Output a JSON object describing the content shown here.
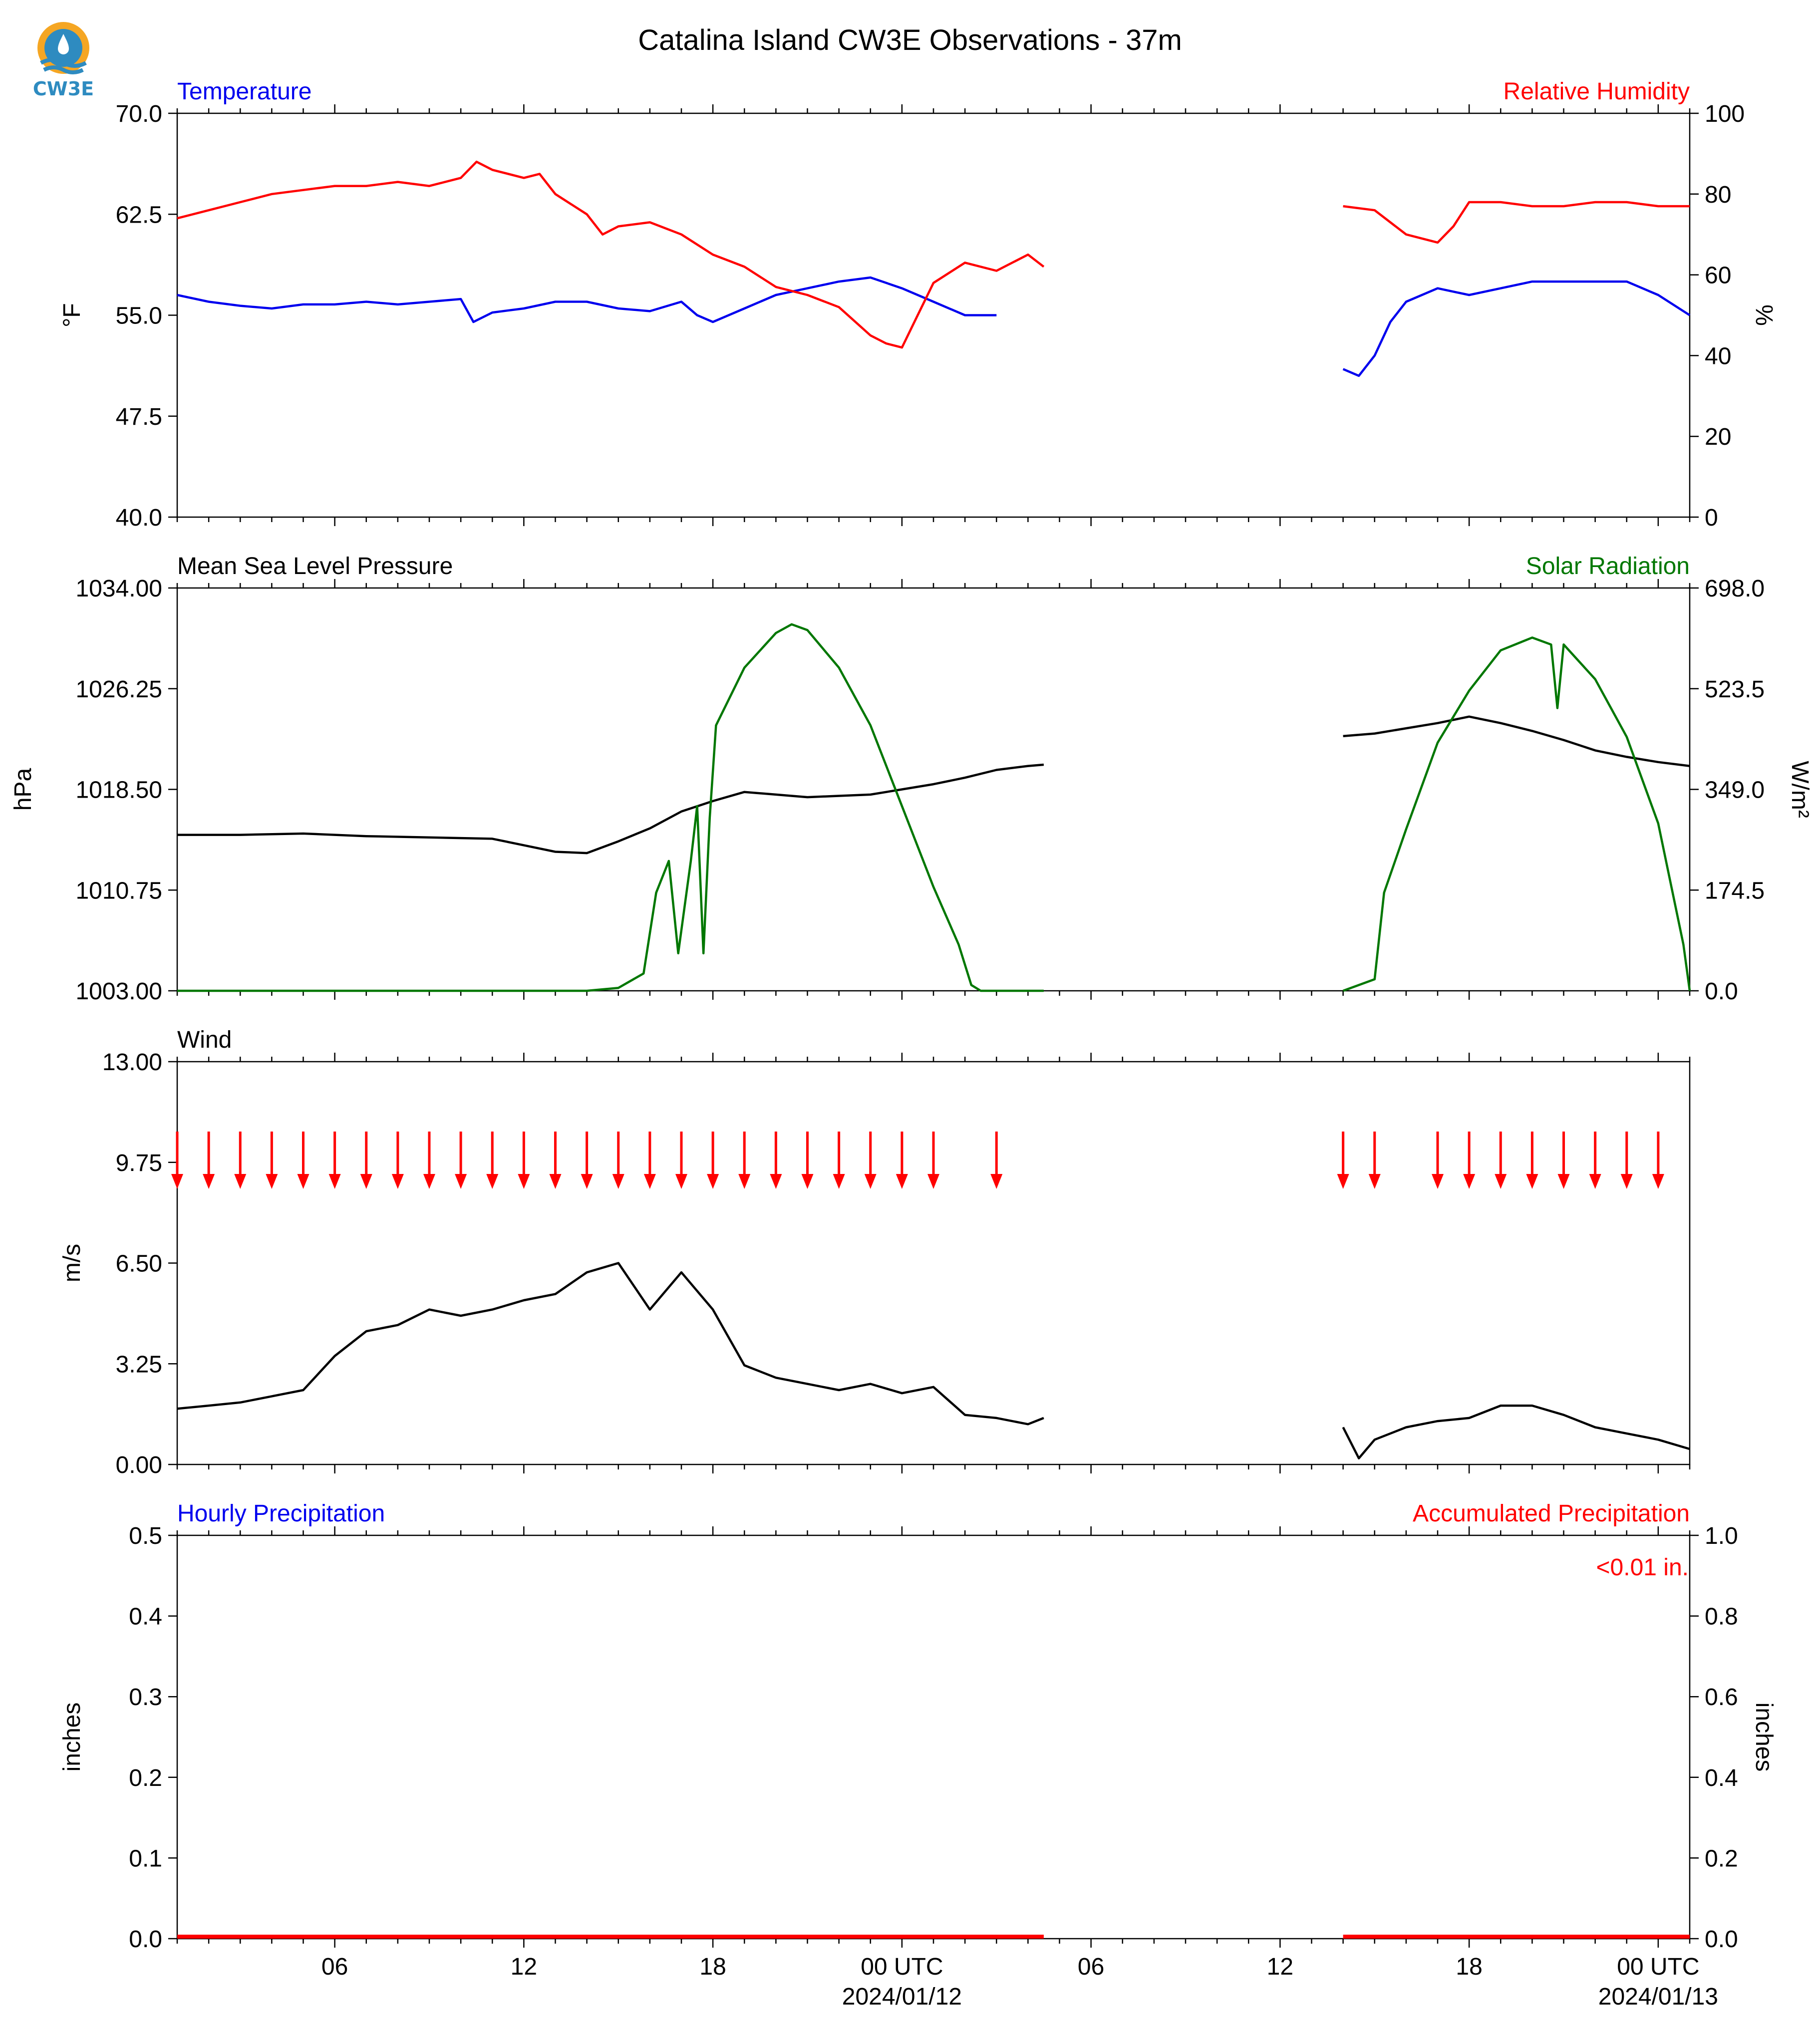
{
  "title": "Catalina Island CW3E Observations - 37m",
  "logo": {
    "text": "CW3E",
    "colors": {
      "outer": "#f5a623",
      "inner": "#2e8bc0",
      "text": "#2e8bc0"
    }
  },
  "colors": {
    "temperature": "#0000ee",
    "humidity": "#ff0000",
    "pressure": "#000000",
    "solar": "#007700",
    "wind_barb": "#ff0000",
    "precip_hourly": "#0000ee",
    "precip_accum": "#ff0000"
  },
  "x_axis": {
    "tick_labels": [
      "06",
      "12",
      "18",
      "00 UTC",
      "06",
      "12",
      "18",
      "00 UTC"
    ],
    "date_labels": [
      "2024/01/12",
      "2024/01/13"
    ]
  },
  "chart_data": [
    {
      "type": "line",
      "panel": "temperature-humidity",
      "title_left": "Temperature",
      "title_right": "Relative Humidity",
      "ylabel_left": "°F",
      "ylabel_right": "%",
      "ylim_left": [
        40.0,
        70.0
      ],
      "ylim_right": [
        0,
        100
      ],
      "yticks_left": [
        "40.0",
        "47.5",
        "55.0",
        "62.5",
        "70.0"
      ],
      "yticks_right": [
        "0",
        "20",
        "40",
        "60",
        "80",
        "100"
      ],
      "xlim_hours": [
        1,
        49
      ],
      "series": [
        {
          "name": "Temperature",
          "axis": "left",
          "color": "#0000ee",
          "segments": [
            [
              [
                1,
                56.5
              ],
              [
                2,
                56.0
              ],
              [
                3,
                55.7
              ],
              [
                4,
                55.5
              ],
              [
                5,
                55.8
              ],
              [
                6,
                55.8
              ],
              [
                7,
                56.0
              ],
              [
                8,
                55.8
              ],
              [
                9,
                56.0
              ],
              [
                10,
                56.2
              ],
              [
                10.4,
                54.5
              ],
              [
                11,
                55.2
              ],
              [
                12,
                55.5
              ],
              [
                13,
                56.0
              ],
              [
                14,
                56.0
              ],
              [
                15,
                55.5
              ],
              [
                16,
                55.3
              ],
              [
                17,
                56.0
              ],
              [
                17.5,
                55.0
              ],
              [
                18,
                54.5
              ],
              [
                19,
                55.5
              ],
              [
                20,
                56.5
              ],
              [
                21,
                57.0
              ],
              [
                22,
                57.5
              ],
              [
                23,
                57.8
              ],
              [
                24,
                57.0
              ],
              [
                25,
                56.0
              ],
              [
                26,
                55.0
              ],
              [
                27,
                55.0
              ]
            ],
            [
              [
                38,
                51.0
              ],
              [
                38.5,
                50.5
              ],
              [
                39,
                52.0
              ],
              [
                39.5,
                54.5
              ],
              [
                40,
                56.0
              ],
              [
                41,
                57.0
              ],
              [
                42,
                56.5
              ],
              [
                43,
                57.0
              ],
              [
                44,
                57.5
              ],
              [
                45,
                57.5
              ],
              [
                46,
                57.5
              ],
              [
                47,
                57.5
              ],
              [
                48,
                56.5
              ],
              [
                49,
                55.0
              ]
            ]
          ]
        },
        {
          "name": "Relative Humidity",
          "axis": "right",
          "color": "#ff0000",
          "segments": [
            [
              [
                1,
                74
              ],
              [
                2,
                76
              ],
              [
                3,
                78
              ],
              [
                4,
                80
              ],
              [
                5,
                81
              ],
              [
                6,
                82
              ],
              [
                7,
                82
              ],
              [
                8,
                83
              ],
              [
                9,
                82
              ],
              [
                10,
                84
              ],
              [
                10.5,
                88
              ],
              [
                11,
                86
              ],
              [
                12,
                84
              ],
              [
                12.5,
                85
              ],
              [
                13,
                80
              ],
              [
                14,
                75
              ],
              [
                14.5,
                70
              ],
              [
                15,
                72
              ],
              [
                16,
                73
              ],
              [
                17,
                70
              ],
              [
                18,
                65
              ],
              [
                19,
                62
              ],
              [
                20,
                57
              ],
              [
                21,
                55
              ],
              [
                22,
                52
              ],
              [
                23,
                45
              ],
              [
                23.5,
                43
              ],
              [
                24,
                42
              ],
              [
                24.5,
                50
              ],
              [
                25,
                58
              ],
              [
                26,
                63
              ],
              [
                27,
                61
              ],
              [
                28,
                65
              ],
              [
                28.5,
                62
              ]
            ],
            [
              [
                38,
                77
              ],
              [
                39,
                76
              ],
              [
                40,
                70
              ],
              [
                41,
                68
              ],
              [
                41.5,
                72
              ],
              [
                42,
                78
              ],
              [
                43,
                78
              ],
              [
                44,
                77
              ],
              [
                45,
                77
              ],
              [
                46,
                78
              ],
              [
                47,
                78
              ],
              [
                48,
                77
              ],
              [
                49,
                77
              ]
            ]
          ]
        }
      ]
    },
    {
      "type": "line",
      "panel": "pressure-solar",
      "title_left": "Mean Sea Level Pressure",
      "title_right": "Solar Radiation",
      "ylabel_left": "hPa",
      "ylabel_right": "W/m²",
      "ylim_left": [
        1003.0,
        1034.0
      ],
      "ylim_right": [
        0.0,
        698.0
      ],
      "yticks_left": [
        "1003.00",
        "1010.75",
        "1018.50",
        "1026.25",
        "1034.00"
      ],
      "yticks_right": [
        "0.0",
        "174.5",
        "349.0",
        "523.5",
        "698.0"
      ],
      "xlim_hours": [
        1,
        49
      ],
      "series": [
        {
          "name": "Mean Sea Level Pressure",
          "axis": "left",
          "color": "#000000",
          "segments": [
            [
              [
                1,
                1015.0
              ],
              [
                3,
                1015.0
              ],
              [
                5,
                1015.1
              ],
              [
                7,
                1014.9
              ],
              [
                9,
                1014.8
              ],
              [
                11,
                1014.7
              ],
              [
                12,
                1014.2
              ],
              [
                13,
                1013.7
              ],
              [
                14,
                1013.6
              ],
              [
                15,
                1014.5
              ],
              [
                16,
                1015.5
              ],
              [
                17,
                1016.8
              ],
              [
                18,
                1017.6
              ],
              [
                19,
                1018.3
              ],
              [
                20,
                1018.1
              ],
              [
                21,
                1017.9
              ],
              [
                22,
                1018.0
              ],
              [
                23,
                1018.1
              ],
              [
                24,
                1018.5
              ],
              [
                25,
                1018.9
              ],
              [
                26,
                1019.4
              ],
              [
                27,
                1020.0
              ],
              [
                28,
                1020.3
              ],
              [
                28.5,
                1020.4
              ]
            ],
            [
              [
                38,
                1022.6
              ],
              [
                39,
                1022.8
              ],
              [
                40,
                1023.2
              ],
              [
                41,
                1023.6
              ],
              [
                42,
                1024.1
              ],
              [
                43,
                1023.6
              ],
              [
                44,
                1023.0
              ],
              [
                45,
                1022.3
              ],
              [
                46,
                1021.5
              ],
              [
                47,
                1021.0
              ],
              [
                48,
                1020.6
              ],
              [
                49,
                1020.3
              ]
            ]
          ]
        },
        {
          "name": "Solar Radiation",
          "axis": "right",
          "color": "#007700",
          "segments": [
            [
              [
                1,
                0
              ],
              [
                14,
                0
              ],
              [
                15,
                5
              ],
              [
                15.8,
                30
              ],
              [
                16.2,
                170
              ],
              [
                16.6,
                225
              ],
              [
                16.9,
                65
              ],
              [
                17.3,
                225
              ],
              [
                17.5,
                320
              ],
              [
                17.7,
                65
              ],
              [
                17.9,
                300
              ],
              [
                18.1,
                460
              ],
              [
                19,
                560
              ],
              [
                20,
                620
              ],
              [
                20.5,
                635
              ],
              [
                21,
                625
              ],
              [
                22,
                560
              ],
              [
                23,
                460
              ],
              [
                24,
                320
              ],
              [
                25,
                180
              ],
              [
                25.8,
                80
              ],
              [
                26.2,
                10
              ],
              [
                26.5,
                0
              ],
              [
                28.5,
                0
              ]
            ],
            [
              [
                38,
                0
              ],
              [
                39,
                20
              ],
              [
                39.3,
                170
              ],
              [
                40,
                280
              ],
              [
                41,
                430
              ],
              [
                42,
                520
              ],
              [
                43,
                590
              ],
              [
                44,
                612
              ],
              [
                44.6,
                600
              ],
              [
                44.8,
                490
              ],
              [
                45,
                600
              ],
              [
                46,
                540
              ],
              [
                47,
                440
              ],
              [
                48,
                290
              ],
              [
                48.8,
                80
              ],
              [
                49,
                0
              ]
            ]
          ]
        }
      ]
    },
    {
      "type": "line",
      "panel": "wind",
      "title_left": "Wind",
      "ylabel_left": "m/s",
      "ylim_left": [
        0.0,
        13.0
      ],
      "yticks_left": [
        "0.00",
        "3.25",
        "6.50",
        "9.75",
        "13.00"
      ],
      "xlim_hours": [
        1,
        49
      ],
      "barb_hours": [
        1,
        2,
        3,
        4,
        5,
        6,
        7,
        8,
        9,
        10,
        11,
        12,
        13,
        14,
        15,
        16,
        17,
        18,
        19,
        20,
        21,
        22,
        23,
        24,
        25,
        27,
        38,
        39,
        41,
        42,
        43,
        44,
        45,
        46,
        47,
        48
      ],
      "series": [
        {
          "name": "Wind",
          "axis": "left",
          "color": "#000000",
          "segments": [
            [
              [
                1,
                1.8
              ],
              [
                2,
                1.9
              ],
              [
                3,
                2.0
              ],
              [
                4,
                2.2
              ],
              [
                5,
                2.4
              ],
              [
                6,
                3.5
              ],
              [
                7,
                4.3
              ],
              [
                8,
                4.5
              ],
              [
                9,
                5.0
              ],
              [
                10,
                4.8
              ],
              [
                11,
                5.0
              ],
              [
                12,
                5.3
              ],
              [
                13,
                5.5
              ],
              [
                14,
                6.2
              ],
              [
                15,
                6.5
              ],
              [
                16,
                5.0
              ],
              [
                17,
                6.2
              ],
              [
                18,
                5.0
              ],
              [
                19,
                3.2
              ],
              [
                20,
                2.8
              ],
              [
                21,
                2.6
              ],
              [
                22,
                2.4
              ],
              [
                23,
                2.6
              ],
              [
                24,
                2.3
              ],
              [
                25,
                2.5
              ],
              [
                26,
                1.6
              ],
              [
                27,
                1.5
              ],
              [
                28,
                1.3
              ],
              [
                28.5,
                1.5
              ]
            ],
            [
              [
                38,
                1.2
              ],
              [
                38.5,
                0.2
              ],
              [
                39,
                0.8
              ],
              [
                40,
                1.2
              ],
              [
                41,
                1.4
              ],
              [
                42,
                1.5
              ],
              [
                43,
                1.9
              ],
              [
                44,
                1.9
              ],
              [
                45,
                1.6
              ],
              [
                46,
                1.2
              ],
              [
                47,
                1.0
              ],
              [
                48,
                0.8
              ],
              [
                49,
                0.5
              ]
            ]
          ]
        }
      ]
    },
    {
      "type": "bar",
      "panel": "precipitation",
      "title_left": "Hourly Precipitation",
      "title_right": "Accumulated Precipitation",
      "ylabel_left": "inches",
      "ylabel_right": "inches",
      "ylim_left": [
        0.0,
        0.5
      ],
      "ylim_right": [
        0.0,
        1.0
      ],
      "yticks_left": [
        "0.0",
        "0.1",
        "0.2",
        "0.3",
        "0.4",
        "0.5"
      ],
      "yticks_right": [
        "0.0",
        "0.2",
        "0.4",
        "0.6",
        "0.8",
        "1.0"
      ],
      "annotation": "<0.01 in.",
      "xlim_hours": [
        1,
        49
      ],
      "hourly_bars": [
        {
          "hour": 10,
          "value": 0.003
        }
      ],
      "accumulated_segments": [
        [
          1,
          28.5,
          0.005
        ],
        [
          38,
          49,
          0.005
        ]
      ]
    }
  ]
}
